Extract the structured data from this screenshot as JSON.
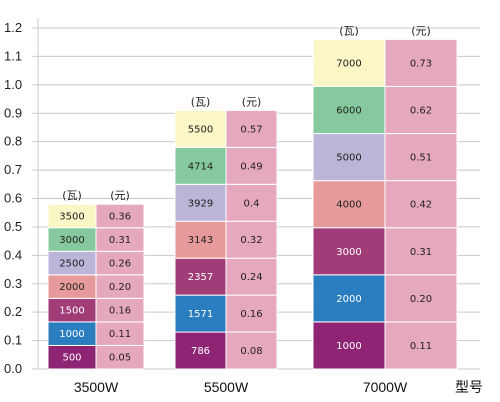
{
  "chart_data": {
    "type": "bar",
    "title": "",
    "ylim": [
      0,
      1.2
    ],
    "y_ticks": [
      "0.0",
      "0.1",
      "0.2",
      "0.3",
      "0.4",
      "0.5",
      "0.6",
      "0.7",
      "0.8",
      "0.9",
      "1.0",
      "1.1",
      "1.2"
    ],
    "x_label": "型号",
    "unit_watts": "(瓦)",
    "unit_yuan": "(元)",
    "grid": true,
    "models": [
      {
        "name": "3500W",
        "total": 0.58,
        "watts": [
          "500",
          "1000",
          "1500",
          "2000",
          "2500",
          "3000",
          "3500"
        ],
        "yuan": [
          "0.05",
          "0.11",
          "0.16",
          "0.20",
          "0.26",
          "0.31",
          "0.36"
        ]
      },
      {
        "name": "5500W",
        "total": 0.91,
        "watts": [
          "786",
          "1571",
          "2357",
          "3143",
          "3929",
          "4714",
          "5500"
        ],
        "yuan": [
          "0.08",
          "0.16",
          "0.24",
          "0.32",
          "0.4",
          "0.49",
          "0.57"
        ]
      },
      {
        "name": "7000W",
        "total": 1.16,
        "watts": [
          "1000",
          "2000",
          "3000",
          "4000",
          "5000",
          "6000",
          "7000"
        ],
        "yuan": [
          "0.11",
          "0.20",
          "0.31",
          "0.42",
          "0.51",
          "0.62",
          "0.73"
        ]
      }
    ],
    "colors": {
      "level_fills": [
        "#8e2473",
        "#2a7dbf",
        "#a23c78",
        "#e79a9a",
        "#bbb6d8",
        "#86c99e",
        "#fbf6c6"
      ],
      "yuan_fill": "#e6a8be",
      "grid_line": "#c9c9c9",
      "cell_border": "#ffffff",
      "text_dark": "#222222",
      "text_light": "#ffffff"
    }
  }
}
